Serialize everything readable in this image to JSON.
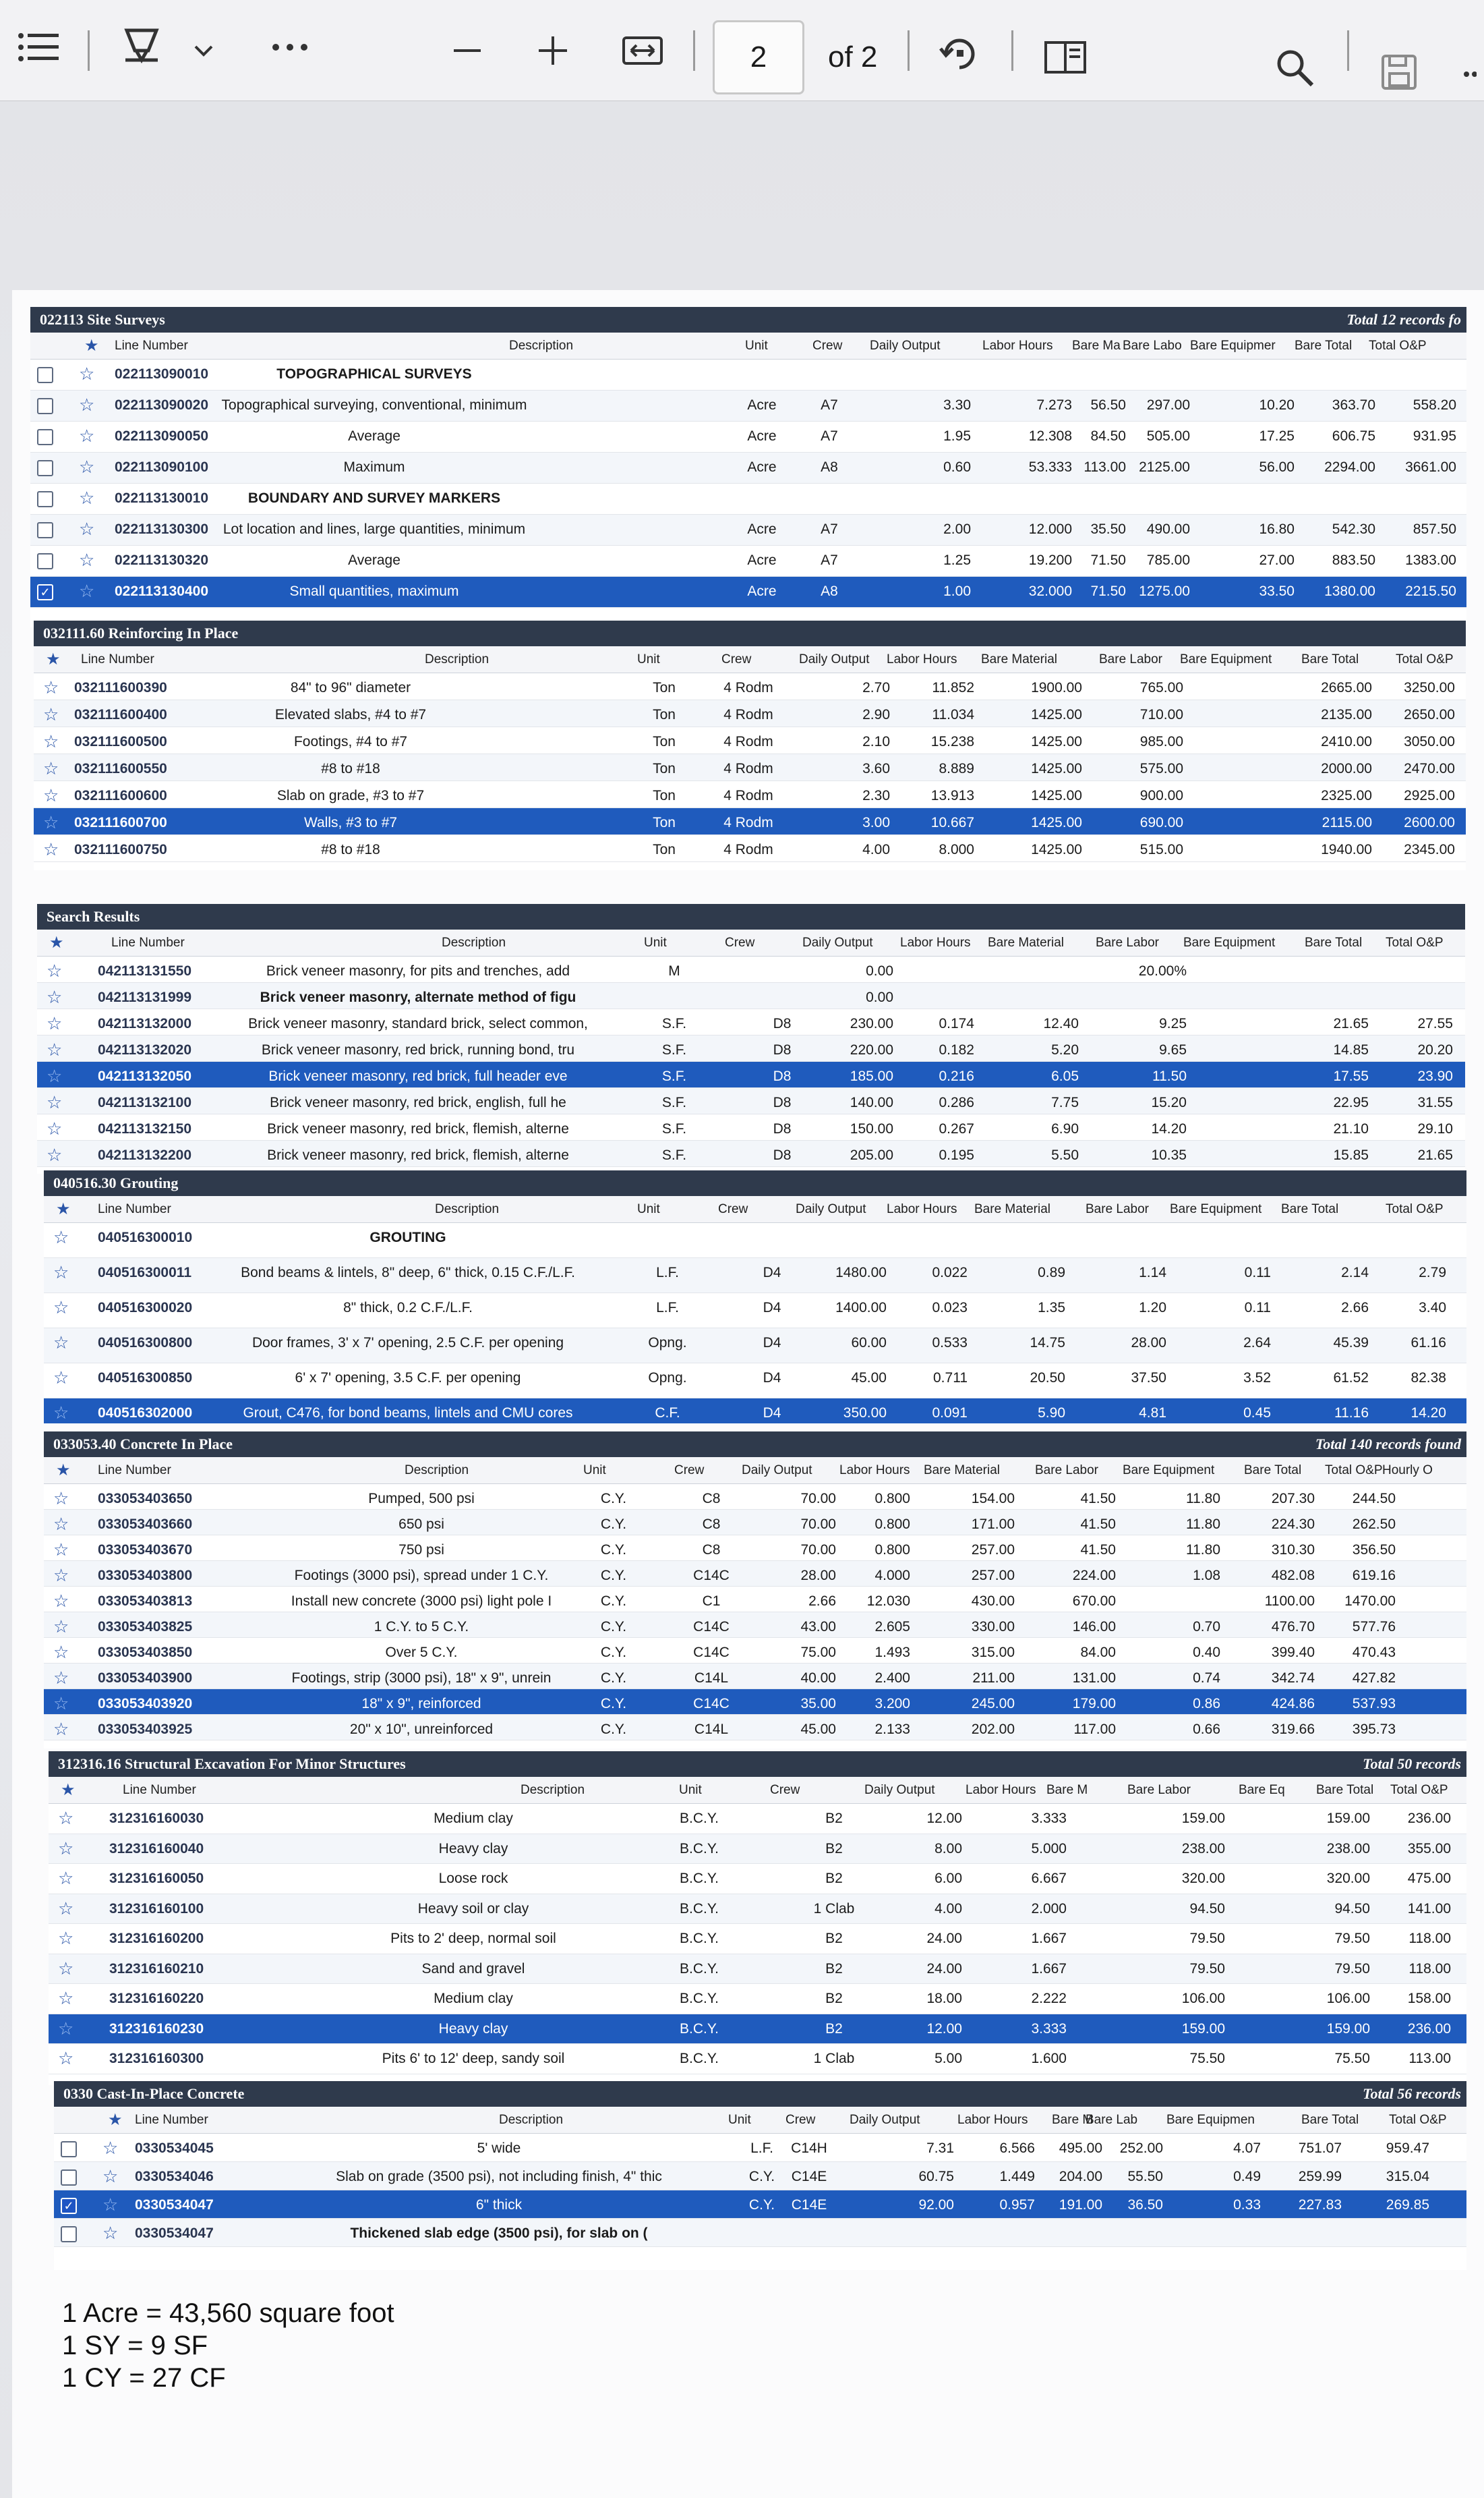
{
  "toolbar": {
    "page_current": "2",
    "page_of": "of 2",
    "icons": [
      "list-icon",
      "draw-icon",
      "chevron-down-icon",
      "more-icon",
      "zoom-out-icon",
      "zoom-in-icon",
      "fit-width-icon",
      "rotate-icon",
      "two-page-icon",
      "search-icon",
      "save-icon"
    ]
  },
  "p1": {
    "title": "022113 Site Surveys",
    "total": "Total 12 records fo",
    "headers": [
      "Line Number",
      "Description",
      "Unit",
      "Crew",
      "Daily Output",
      "Labor Hours",
      "Bare Ma",
      "Bare Labo",
      "Bare Equipmer",
      "Bare Total",
      "Total O&P"
    ],
    "rows": [
      {
        "ln": "022113090010",
        "desc": "TOPOGRAPHICAL SURVEYS",
        "unit": "",
        "crew": "",
        "out": "",
        "lh": "",
        "mat": "",
        "lab": "",
        "eq": "",
        "bt": "",
        "op": ""
      },
      {
        "ln": "022113090020",
        "desc": "Topographical surveying, conventional, minimum",
        "unit": "Acre",
        "crew": "A7",
        "out": "3.30",
        "lh": "7.273",
        "mat": "56.50",
        "lab": "297.00",
        "eq": "10.20",
        "bt": "363.70",
        "op": "558.20"
      },
      {
        "ln": "022113090050",
        "desc": "Average",
        "unit": "Acre",
        "crew": "A7",
        "out": "1.95",
        "lh": "12.308",
        "mat": "84.50",
        "lab": "505.00",
        "eq": "17.25",
        "bt": "606.75",
        "op": "931.95"
      },
      {
        "ln": "022113090100",
        "desc": "Maximum",
        "unit": "Acre",
        "crew": "A8",
        "out": "0.60",
        "lh": "53.333",
        "mat": "113.00",
        "lab": "2125.00",
        "eq": "56.00",
        "bt": "2294.00",
        "op": "3661.00"
      },
      {
        "ln": "022113130010",
        "desc": "BOUNDARY AND SURVEY MARKERS",
        "unit": "",
        "crew": "",
        "out": "",
        "lh": "",
        "mat": "",
        "lab": "",
        "eq": "",
        "bt": "",
        "op": ""
      },
      {
        "ln": "022113130300",
        "desc": "Lot location and lines, large quantities, minimum",
        "unit": "Acre",
        "crew": "A7",
        "out": "2.00",
        "lh": "12.000",
        "mat": "35.50",
        "lab": "490.00",
        "eq": "16.80",
        "bt": "542.30",
        "op": "857.50"
      },
      {
        "ln": "022113130320",
        "desc": "Average",
        "unit": "Acre",
        "crew": "A7",
        "out": "1.25",
        "lh": "19.200",
        "mat": "71.50",
        "lab": "785.00",
        "eq": "27.00",
        "bt": "883.50",
        "op": "1383.00"
      },
      {
        "ln": "022113130400",
        "desc": "Small quantities, maximum",
        "unit": "Acre",
        "crew": "A8",
        "out": "1.00",
        "lh": "32.000",
        "mat": "71.50",
        "lab": "1275.00",
        "eq": "33.50",
        "bt": "1380.00",
        "op": "2215.50"
      }
    ]
  },
  "p2": {
    "title": "032111.60 Reinforcing In Place",
    "headers": [
      "Line Number",
      "Description",
      "Unit",
      "Crew",
      "Daily Output",
      "Labor Hours",
      "Bare Material",
      "Bare Labor",
      "Bare Equipment",
      "Bare Total",
      "Total O&P"
    ],
    "rows": [
      {
        "ln": "032111600390",
        "desc": "84\" to 96\" diameter",
        "unit": "Ton",
        "crew": "4 Rodm",
        "out": "2.70",
        "lh": "11.852",
        "mat": "1900.00",
        "lab": "765.00",
        "eq": "",
        "bt": "2665.00",
        "op": "3250.00"
      },
      {
        "ln": "032111600400",
        "desc": "Elevated slabs, #4 to #7",
        "unit": "Ton",
        "crew": "4 Rodm",
        "out": "2.90",
        "lh": "11.034",
        "mat": "1425.00",
        "lab": "710.00",
        "eq": "",
        "bt": "2135.00",
        "op": "2650.00"
      },
      {
        "ln": "032111600500",
        "desc": "Footings, #4 to #7",
        "unit": "Ton",
        "crew": "4 Rodm",
        "out": "2.10",
        "lh": "15.238",
        "mat": "1425.00",
        "lab": "985.00",
        "eq": "",
        "bt": "2410.00",
        "op": "3050.00"
      },
      {
        "ln": "032111600550",
        "desc": "#8 to #18",
        "unit": "Ton",
        "crew": "4 Rodm",
        "out": "3.60",
        "lh": "8.889",
        "mat": "1425.00",
        "lab": "575.00",
        "eq": "",
        "bt": "2000.00",
        "op": "2470.00"
      },
      {
        "ln": "032111600600",
        "desc": "Slab on grade, #3 to #7",
        "unit": "Ton",
        "crew": "4 Rodm",
        "out": "2.30",
        "lh": "13.913",
        "mat": "1425.00",
        "lab": "900.00",
        "eq": "",
        "bt": "2325.00",
        "op": "2925.00"
      },
      {
        "ln": "032111600700",
        "desc": "Walls, #3 to #7",
        "unit": "Ton",
        "crew": "4 Rodm",
        "out": "3.00",
        "lh": "10.667",
        "mat": "1425.00",
        "lab": "690.00",
        "eq": "",
        "bt": "2115.00",
        "op": "2600.00"
      },
      {
        "ln": "032111600750",
        "desc": "#8 to #18",
        "unit": "Ton",
        "crew": "4 Rodm",
        "out": "4.00",
        "lh": "8.000",
        "mat": "1425.00",
        "lab": "515.00",
        "eq": "",
        "bt": "1940.00",
        "op": "2345.00"
      }
    ]
  },
  "p3": {
    "title": "Search Results",
    "headers": [
      "Line Number",
      "Description",
      "Unit",
      "Crew",
      "Daily Output",
      "Labor Hours",
      "Bare Material",
      "Bare Labor",
      "Bare Equipment",
      "Bare Total",
      "Total O&P"
    ],
    "rows": [
      {
        "ln": "042113131550",
        "desc": "Brick veneer masonry, for pits and trenches, add",
        "unit": "M",
        "crew": "",
        "out": "0.00",
        "lh": "",
        "mat": "",
        "lab": "20.00%",
        "eq": "",
        "bt": "",
        "op": ""
      },
      {
        "ln": "042113131999",
        "desc": "Brick veneer masonry, alternate method of figu",
        "unit": "",
        "crew": "",
        "out": "0.00",
        "lh": "",
        "mat": "",
        "lab": "",
        "eq": "",
        "bt": "",
        "op": ""
      },
      {
        "ln": "042113132000",
        "desc": "Brick veneer masonry, standard brick, select common,",
        "unit": "S.F.",
        "crew": "D8",
        "out": "230.00",
        "lh": "0.174",
        "mat": "12.40",
        "lab": "9.25",
        "eq": "",
        "bt": "21.65",
        "op": "27.55"
      },
      {
        "ln": "042113132020",
        "desc": "Brick veneer masonry, red brick, running bond, tru",
        "unit": "S.F.",
        "crew": "D8",
        "out": "220.00",
        "lh": "0.182",
        "mat": "5.20",
        "lab": "9.65",
        "eq": "",
        "bt": "14.85",
        "op": "20.20"
      },
      {
        "ln": "042113132050",
        "desc": "Brick veneer masonry, red brick, full header eve",
        "unit": "S.F.",
        "crew": "D8",
        "out": "185.00",
        "lh": "0.216",
        "mat": "6.05",
        "lab": "11.50",
        "eq": "",
        "bt": "17.55",
        "op": "23.90"
      },
      {
        "ln": "042113132100",
        "desc": "Brick veneer masonry, red brick, english, full he",
        "unit": "S.F.",
        "crew": "D8",
        "out": "140.00",
        "lh": "0.286",
        "mat": "7.75",
        "lab": "15.20",
        "eq": "",
        "bt": "22.95",
        "op": "31.55"
      },
      {
        "ln": "042113132150",
        "desc": "Brick veneer masonry, red brick, flemish, alterne",
        "unit": "S.F.",
        "crew": "D8",
        "out": "150.00",
        "lh": "0.267",
        "mat": "6.90",
        "lab": "14.20",
        "eq": "",
        "bt": "21.10",
        "op": "29.10"
      },
      {
        "ln": "042113132200",
        "desc": "Brick veneer masonry, red brick, flemish, alterne",
        "unit": "S.F.",
        "crew": "D8",
        "out": "205.00",
        "lh": "0.195",
        "mat": "5.50",
        "lab": "10.35",
        "eq": "",
        "bt": "15.85",
        "op": "21.65"
      }
    ]
  },
  "p4": {
    "title": "040516.30 Grouting",
    "headers": [
      "Line Number",
      "Description",
      "Unit",
      "Crew",
      "Daily Output",
      "Labor Hours",
      "Bare Material",
      "Bare Labor",
      "Bare Equipment",
      "Bare Total",
      "Total O&P"
    ],
    "rows": [
      {
        "ln": "040516300010",
        "desc": "GROUTING",
        "unit": "",
        "crew": "",
        "out": "",
        "lh": "",
        "mat": "",
        "lab": "",
        "eq": "",
        "bt": "",
        "op": ""
      },
      {
        "ln": "040516300011",
        "desc": "Bond beams & lintels, 8\" deep, 6\" thick, 0.15 C.F./L.F.",
        "unit": "L.F.",
        "crew": "D4",
        "out": "1480.00",
        "lh": "0.022",
        "mat": "0.89",
        "lab": "1.14",
        "eq": "0.11",
        "bt": "2.14",
        "op": "2.79"
      },
      {
        "ln": "040516300020",
        "desc": "8\" thick, 0.2 C.F./L.F.",
        "unit": "L.F.",
        "crew": "D4",
        "out": "1400.00",
        "lh": "0.023",
        "mat": "1.35",
        "lab": "1.20",
        "eq": "0.11",
        "bt": "2.66",
        "op": "3.40"
      },
      {
        "ln": "040516300800",
        "desc": "Door frames, 3' x 7' opening, 2.5 C.F. per opening",
        "unit": "Opng.",
        "crew": "D4",
        "out": "60.00",
        "lh": "0.533",
        "mat": "14.75",
        "lab": "28.00",
        "eq": "2.64",
        "bt": "45.39",
        "op": "61.16"
      },
      {
        "ln": "040516300850",
        "desc": "6' x 7' opening, 3.5 C.F. per opening",
        "unit": "Opng.",
        "crew": "D4",
        "out": "45.00",
        "lh": "0.711",
        "mat": "20.50",
        "lab": "37.50",
        "eq": "3.52",
        "bt": "61.52",
        "op": "82.38"
      },
      {
        "ln": "040516302000",
        "desc": "Grout, C476, for bond beams, lintels and CMU cores",
        "unit": "C.F.",
        "crew": "D4",
        "out": "350.00",
        "lh": "0.091",
        "mat": "5.90",
        "lab": "4.81",
        "eq": "0.45",
        "bt": "11.16",
        "op": "14.20"
      }
    ]
  },
  "p5": {
    "title": "033053.40 Concrete In Place",
    "total": "Total 140 records found",
    "headers": [
      "Line Number",
      "Description",
      "Unit",
      "Crew",
      "Daily Output",
      "Labor Hours",
      "Bare Material",
      "Bare Labor",
      "Bare Equipment",
      "Bare Total",
      "Total O&P",
      "Hourly O"
    ],
    "rows": [
      {
        "ln": "033053403650",
        "desc": "Pumped, 500 psi",
        "unit": "C.Y.",
        "crew": "C8",
        "out": "70.00",
        "lh": "0.800",
        "mat": "154.00",
        "lab": "41.50",
        "eq": "11.80",
        "bt": "207.30",
        "op": "244.50"
      },
      {
        "ln": "033053403660",
        "desc": "650 psi",
        "unit": "C.Y.",
        "crew": "C8",
        "out": "70.00",
        "lh": "0.800",
        "mat": "171.00",
        "lab": "41.50",
        "eq": "11.80",
        "bt": "224.30",
        "op": "262.50"
      },
      {
        "ln": "033053403670",
        "desc": "750 psi",
        "unit": "C.Y.",
        "crew": "C8",
        "out": "70.00",
        "lh": "0.800",
        "mat": "257.00",
        "lab": "41.50",
        "eq": "11.80",
        "bt": "310.30",
        "op": "356.50"
      },
      {
        "ln": "033053403800",
        "desc": "Footings (3000 psi), spread under 1 C.Y.",
        "unit": "C.Y.",
        "crew": "C14C",
        "out": "28.00",
        "lh": "4.000",
        "mat": "257.00",
        "lab": "224.00",
        "eq": "1.08",
        "bt": "482.08",
        "op": "619.16"
      },
      {
        "ln": "033053403813",
        "desc": "Install new concrete (3000 psi) light pole I",
        "unit": "C.Y.",
        "crew": "C1",
        "out": "2.66",
        "lh": "12.030",
        "mat": "430.00",
        "lab": "670.00",
        "eq": "",
        "bt": "1100.00",
        "op": "1470.00"
      },
      {
        "ln": "033053403825",
        "desc": "1 C.Y. to 5 C.Y.",
        "unit": "C.Y.",
        "crew": "C14C",
        "out": "43.00",
        "lh": "2.605",
        "mat": "330.00",
        "lab": "146.00",
        "eq": "0.70",
        "bt": "476.70",
        "op": "577.76"
      },
      {
        "ln": "033053403850",
        "desc": "Over 5 C.Y.",
        "unit": "C.Y.",
        "crew": "C14C",
        "out": "75.00",
        "lh": "1.493",
        "mat": "315.00",
        "lab": "84.00",
        "eq": "0.40",
        "bt": "399.40",
        "op": "470.43"
      },
      {
        "ln": "033053403900",
        "desc": "Footings, strip (3000 psi), 18\" x 9\", unrein",
        "unit": "C.Y.",
        "crew": "C14L",
        "out": "40.00",
        "lh": "2.400",
        "mat": "211.00",
        "lab": "131.00",
        "eq": "0.74",
        "bt": "342.74",
        "op": "427.82"
      },
      {
        "ln": "033053403920",
        "desc": "18\" x 9\", reinforced",
        "unit": "C.Y.",
        "crew": "C14C",
        "out": "35.00",
        "lh": "3.200",
        "mat": "245.00",
        "lab": "179.00",
        "eq": "0.86",
        "bt": "424.86",
        "op": "537.93"
      },
      {
        "ln": "033053403925",
        "desc": "20\" x 10\", unreinforced",
        "unit": "C.Y.",
        "crew": "C14L",
        "out": "45.00",
        "lh": "2.133",
        "mat": "202.00",
        "lab": "117.00",
        "eq": "0.66",
        "bt": "319.66",
        "op": "395.73"
      }
    ]
  },
  "p6": {
    "title": "312316.16 Structural Excavation For Minor Structures",
    "total": "Total 50 records",
    "headers": [
      "Line Number",
      "Description",
      "Unit",
      "Crew",
      "Daily Output",
      "Labor Hours",
      "Bare M",
      "Bare Labor",
      "Bare Eq",
      "Bare Total",
      "Total O&P"
    ],
    "rows": [
      {
        "ln": "312316160030",
        "desc": "Medium clay",
        "unit": "B.C.Y.",
        "crew": "B2",
        "out": "12.00",
        "lh": "3.333",
        "lab": "159.00",
        "bt": "159.00",
        "op": "236.00"
      },
      {
        "ln": "312316160040",
        "desc": "Heavy clay",
        "unit": "B.C.Y.",
        "crew": "B2",
        "out": "8.00",
        "lh": "5.000",
        "lab": "238.00",
        "bt": "238.00",
        "op": "355.00"
      },
      {
        "ln": "312316160050",
        "desc": "Loose rock",
        "unit": "B.C.Y.",
        "crew": "B2",
        "out": "6.00",
        "lh": "6.667",
        "lab": "320.00",
        "bt": "320.00",
        "op": "475.00"
      },
      {
        "ln": "312316160100",
        "desc": "Heavy soil or clay",
        "unit": "B.C.Y.",
        "crew": "1 Clab",
        "out": "4.00",
        "lh": "2.000",
        "lab": "94.50",
        "bt": "94.50",
        "op": "141.00"
      },
      {
        "ln": "312316160200",
        "desc": "Pits to 2' deep, normal soil",
        "unit": "B.C.Y.",
        "crew": "B2",
        "out": "24.00",
        "lh": "1.667",
        "lab": "79.50",
        "bt": "79.50",
        "op": "118.00"
      },
      {
        "ln": "312316160210",
        "desc": "Sand and gravel",
        "unit": "B.C.Y.",
        "crew": "B2",
        "out": "24.00",
        "lh": "1.667",
        "lab": "79.50",
        "bt": "79.50",
        "op": "118.00"
      },
      {
        "ln": "312316160220",
        "desc": "Medium clay",
        "unit": "B.C.Y.",
        "crew": "B2",
        "out": "18.00",
        "lh": "2.222",
        "lab": "106.00",
        "bt": "106.00",
        "op": "158.00"
      },
      {
        "ln": "312316160230",
        "desc": "Heavy clay",
        "unit": "B.C.Y.",
        "crew": "B2",
        "out": "12.00",
        "lh": "3.333",
        "lab": "159.00",
        "bt": "159.00",
        "op": "236.00"
      },
      {
        "ln": "312316160300",
        "desc": "Pits 6' to 12' deep, sandy soil",
        "unit": "B.C.Y.",
        "crew": "1 Clab",
        "out": "5.00",
        "lh": "1.600",
        "lab": "75.50",
        "bt": "75.50",
        "op": "113.00"
      }
    ]
  },
  "p7": {
    "title": "0330 Cast-In-Place Concrete",
    "total": "Total 56 records",
    "headers": [
      "Line Number",
      "Description",
      "Unit",
      "Crew",
      "Daily Output",
      "Labor Hours",
      "Bare M",
      "Bare Lab",
      "Bare Equipmen",
      "Bare Total",
      "Total O&P"
    ],
    "rows": [
      {
        "ln": "0330534045",
        "desc": "5' wide",
        "unit": "L.F.",
        "crew": "C14H",
        "out": "7.31",
        "lh": "6.566",
        "mat": "495.00",
        "lab": "252.00",
        "eq": "4.07",
        "bt": "751.07",
        "op": "959.47"
      },
      {
        "ln": "0330534046",
        "desc": "Slab on grade (3500 psi), not including finish, 4\" thic",
        "unit": "C.Y.",
        "crew": "C14E",
        "out": "60.75",
        "lh": "1.449",
        "mat": "204.00",
        "lab": "55.50",
        "eq": "0.49",
        "bt": "259.99",
        "op": "315.04"
      },
      {
        "ln": "0330534047",
        "desc": "6\" thick",
        "unit": "C.Y.",
        "crew": "C14E",
        "out": "92.00",
        "lh": "0.957",
        "mat": "191.00",
        "lab": "36.50",
        "eq": "0.33",
        "bt": "227.83",
        "op": "269.85"
      },
      {
        "ln": "0330534047",
        "desc": "Thickened slab edge (3500 psi), for slab on (",
        "unit": "",
        "crew": "",
        "out": "",
        "lh": "",
        "mat": "",
        "lab": "",
        "eq": "",
        "bt": "",
        "op": ""
      }
    ]
  },
  "notes": {
    "line1": "1 Acre = 43,560 square foot",
    "line2": "1 SY = 9 SF",
    "line3": "1 CY = 27 CF"
  }
}
